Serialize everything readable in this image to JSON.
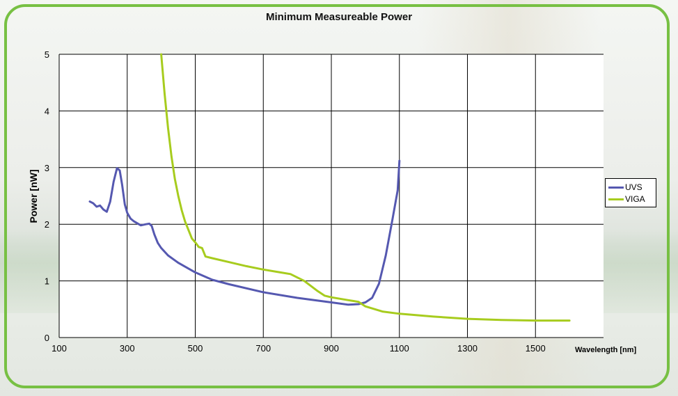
{
  "chart_data": {
    "type": "line",
    "title": "Minimum Measureable Power",
    "xlabel": "Wavelength [nm]",
    "ylabel": "Power [nW]",
    "xlim": [
      100,
      1700
    ],
    "ylim": [
      0,
      5
    ],
    "x_ticks": [
      "100",
      "300",
      "500",
      "700",
      "900",
      "1100",
      "1300",
      "1500"
    ],
    "y_ticks": [
      "0",
      "1",
      "2",
      "3",
      "4",
      "5"
    ],
    "grid": true,
    "legend_position": "right",
    "series": [
      {
        "name": "UVS",
        "color": "#5558b0",
        "x": [
          190,
          200,
          210,
          220,
          230,
          240,
          250,
          260,
          270,
          278,
          285,
          293,
          300,
          310,
          320,
          340,
          355,
          365,
          372,
          380,
          390,
          400,
          420,
          450,
          500,
          550,
          600,
          700,
          800,
          900,
          950,
          980,
          1000,
          1020,
          1040,
          1060,
          1080,
          1095,
          1100
        ],
        "y": [
          2.4,
          2.37,
          2.31,
          2.33,
          2.26,
          2.22,
          2.4,
          2.75,
          2.99,
          2.95,
          2.7,
          2.35,
          2.2,
          2.1,
          2.05,
          1.98,
          2.0,
          2.01,
          1.97,
          1.82,
          1.67,
          1.58,
          1.45,
          1.32,
          1.15,
          1.02,
          0.94,
          0.8,
          0.7,
          0.62,
          0.58,
          0.59,
          0.62,
          0.7,
          0.95,
          1.45,
          2.1,
          2.6,
          3.12
        ]
      },
      {
        "name": "VIGA",
        "color": "#a7cc1e",
        "x": [
          400,
          410,
          420,
          430,
          440,
          450,
          460,
          470,
          480,
          490,
          500,
          510,
          520,
          530,
          550,
          600,
          650,
          700,
          750,
          780,
          800,
          820,
          840,
          860,
          880,
          900,
          950,
          980,
          1000,
          1050,
          1100,
          1200,
          1300,
          1400,
          1500,
          1600
        ],
        "y": [
          5.0,
          4.3,
          3.7,
          3.2,
          2.8,
          2.5,
          2.25,
          2.05,
          1.9,
          1.75,
          1.68,
          1.6,
          1.58,
          1.43,
          1.4,
          1.33,
          1.26,
          1.2,
          1.15,
          1.12,
          1.06,
          1.0,
          0.91,
          0.82,
          0.74,
          0.71,
          0.66,
          0.63,
          0.55,
          0.46,
          0.42,
          0.37,
          0.33,
          0.31,
          0.3,
          0.3
        ]
      }
    ]
  }
}
